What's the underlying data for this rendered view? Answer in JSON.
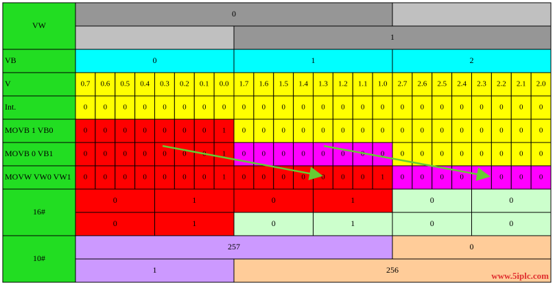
{
  "groups": [
    {
      "label": "VW",
      "rows": [
        [
          {
            "text": "0",
            "span": 16,
            "color": "#969696"
          },
          {
            "span": 8,
            "color": "#c0c0c0"
          }
        ],
        [
          {
            "span": 8,
            "color": "#c0c0c0"
          },
          {
            "text": "1",
            "span": 16,
            "color": "#969696"
          }
        ]
      ]
    },
    {
      "label": "VB",
      "rows": [
        [
          {
            "text": "0",
            "span": 8,
            "color": "#00ffff"
          },
          {
            "text": "1",
            "span": 8,
            "color": "#00ffff"
          },
          {
            "text": "2",
            "span": 8,
            "color": "#00ffff"
          }
        ]
      ]
    },
    {
      "label": "V",
      "rows": [
        [
          {
            "text": "0.7",
            "color": "#ffff00"
          },
          {
            "text": "0.6",
            "color": "#ffff00"
          },
          {
            "text": "0.5",
            "color": "#ffff00"
          },
          {
            "text": "0.4",
            "color": "#ffff00"
          },
          {
            "text": "0.3",
            "color": "#ffff00"
          },
          {
            "text": "0.2",
            "color": "#ffff00"
          },
          {
            "text": "0.1",
            "color": "#ffff00"
          },
          {
            "text": "0.0",
            "color": "#ffff00"
          },
          {
            "text": "1.7",
            "color": "#ffff00"
          },
          {
            "text": "1.6",
            "color": "#ffff00"
          },
          {
            "text": "1.5",
            "color": "#ffff00"
          },
          {
            "text": "1.4",
            "color": "#ffff00"
          },
          {
            "text": "1.3",
            "color": "#ffff00"
          },
          {
            "text": "1.2",
            "color": "#ffff00"
          },
          {
            "text": "1.1",
            "color": "#ffff00"
          },
          {
            "text": "1.0",
            "color": "#ffff00"
          },
          {
            "text": "2.7",
            "color": "#ffff00"
          },
          {
            "text": "2.6",
            "color": "#ffff00"
          },
          {
            "text": "2.5",
            "color": "#ffff00"
          },
          {
            "text": "2.4",
            "color": "#ffff00"
          },
          {
            "text": "2.3",
            "color": "#ffff00"
          },
          {
            "text": "2.2",
            "color": "#ffff00"
          },
          {
            "text": "2.1",
            "color": "#ffff00"
          },
          {
            "text": "2.0",
            "color": "#ffff00"
          }
        ]
      ]
    },
    {
      "label": "Int.",
      "rows": [
        [
          {
            "text": "0",
            "color": "#ffff00"
          },
          {
            "text": "0",
            "color": "#ffff00"
          },
          {
            "text": "0",
            "color": "#ffff00"
          },
          {
            "text": "0",
            "color": "#ffff00"
          },
          {
            "text": "0",
            "color": "#ffff00"
          },
          {
            "text": "0",
            "color": "#ffff00"
          },
          {
            "text": "0",
            "color": "#ffff00"
          },
          {
            "text": "0",
            "color": "#ffff00"
          },
          {
            "text": "0",
            "color": "#ffff00"
          },
          {
            "text": "0",
            "color": "#ffff00"
          },
          {
            "text": "0",
            "color": "#ffff00"
          },
          {
            "text": "0",
            "color": "#ffff00"
          },
          {
            "text": "0",
            "color": "#ffff00"
          },
          {
            "text": "0",
            "color": "#ffff00"
          },
          {
            "text": "0",
            "color": "#ffff00"
          },
          {
            "text": "0",
            "color": "#ffff00"
          },
          {
            "text": "0",
            "color": "#ffff00"
          },
          {
            "text": "0",
            "color": "#ffff00"
          },
          {
            "text": "0",
            "color": "#ffff00"
          },
          {
            "text": "0",
            "color": "#ffff00"
          },
          {
            "text": "0",
            "color": "#ffff00"
          },
          {
            "text": "0",
            "color": "#ffff00"
          },
          {
            "text": "0",
            "color": "#ffff00"
          },
          {
            "text": "0",
            "color": "#ffff00"
          }
        ]
      ]
    },
    {
      "label": "MOVB 1 VB0",
      "rows": [
        [
          {
            "text": "0",
            "color": "#ff0000"
          },
          {
            "text": "0",
            "color": "#ff0000"
          },
          {
            "text": "0",
            "color": "#ff0000"
          },
          {
            "text": "0",
            "color": "#ff0000"
          },
          {
            "text": "0",
            "color": "#ff0000"
          },
          {
            "text": "0",
            "color": "#ff0000"
          },
          {
            "text": "0",
            "color": "#ff0000"
          },
          {
            "text": "1",
            "color": "#ff0000"
          },
          {
            "text": "0",
            "color": "#ffff00"
          },
          {
            "text": "0",
            "color": "#ffff00"
          },
          {
            "text": "0",
            "color": "#ffff00"
          },
          {
            "text": "0",
            "color": "#ffff00"
          },
          {
            "text": "0",
            "color": "#ffff00"
          },
          {
            "text": "0",
            "color": "#ffff00"
          },
          {
            "text": "0",
            "color": "#ffff00"
          },
          {
            "text": "0",
            "color": "#ffff00"
          },
          {
            "text": "0",
            "color": "#ffff00"
          },
          {
            "text": "0",
            "color": "#ffff00"
          },
          {
            "text": "0",
            "color": "#ffff00"
          },
          {
            "text": "0",
            "color": "#ffff00"
          },
          {
            "text": "0",
            "color": "#ffff00"
          },
          {
            "text": "0",
            "color": "#ffff00"
          },
          {
            "text": "0",
            "color": "#ffff00"
          },
          {
            "text": "0",
            "color": "#ffff00"
          }
        ]
      ]
    },
    {
      "label": "MOVB 0 VB1",
      "rows": [
        [
          {
            "text": "0",
            "color": "#ff0000"
          },
          {
            "text": "0",
            "color": "#ff0000"
          },
          {
            "text": "0",
            "color": "#ff0000"
          },
          {
            "text": "0",
            "color": "#ff0000"
          },
          {
            "text": "0",
            "color": "#ff0000"
          },
          {
            "text": "0",
            "color": "#ff0000"
          },
          {
            "text": "0",
            "color": "#ff0000"
          },
          {
            "text": "1",
            "color": "#ff0000"
          },
          {
            "text": "0",
            "color": "#ff00ff"
          },
          {
            "text": "0",
            "color": "#ff00ff"
          },
          {
            "text": "0",
            "color": "#ff00ff"
          },
          {
            "text": "0",
            "color": "#ff00ff"
          },
          {
            "text": "0",
            "color": "#ff00ff"
          },
          {
            "text": "0",
            "color": "#ff00ff"
          },
          {
            "text": "0",
            "color": "#ff00ff"
          },
          {
            "text": "0",
            "color": "#ff00ff"
          },
          {
            "text": "0",
            "color": "#ffff00"
          },
          {
            "text": "0",
            "color": "#ffff00"
          },
          {
            "text": "0",
            "color": "#ffff00"
          },
          {
            "text": "0",
            "color": "#ffff00"
          },
          {
            "text": "0",
            "color": "#ffff00"
          },
          {
            "text": "0",
            "color": "#ffff00"
          },
          {
            "text": "0",
            "color": "#ffff00"
          },
          {
            "text": "0",
            "color": "#ffff00"
          }
        ]
      ]
    },
    {
      "label": "MOVW VW0 VW1",
      "rows": [
        [
          {
            "text": "0",
            "color": "#ff0000"
          },
          {
            "text": "0",
            "color": "#ff0000"
          },
          {
            "text": "0",
            "color": "#ff0000"
          },
          {
            "text": "0",
            "color": "#ff0000"
          },
          {
            "text": "0",
            "color": "#ff0000"
          },
          {
            "text": "0",
            "color": "#ff0000"
          },
          {
            "text": "0",
            "color": "#ff0000"
          },
          {
            "text": "1",
            "color": "#ff0000"
          },
          {
            "text": "0",
            "color": "#ff0000"
          },
          {
            "text": "0",
            "color": "#ff0000"
          },
          {
            "text": "0",
            "color": "#ff0000"
          },
          {
            "text": "0",
            "color": "#ff0000"
          },
          {
            "text": "0",
            "color": "#ff0000"
          },
          {
            "text": "0",
            "color": "#ff0000"
          },
          {
            "text": "0",
            "color": "#ff0000"
          },
          {
            "text": "1",
            "color": "#ff0000"
          },
          {
            "text": "0",
            "color": "#ff00ff"
          },
          {
            "text": "0",
            "color": "#ff00ff"
          },
          {
            "text": "0",
            "color": "#ff00ff"
          },
          {
            "text": "0",
            "color": "#ff00ff"
          },
          {
            "text": "0",
            "color": "#ff00ff"
          },
          {
            "text": "0",
            "color": "#ff00ff"
          },
          {
            "text": "0",
            "color": "#ff00ff"
          },
          {
            "text": "0",
            "color": "#ff00ff"
          }
        ]
      ]
    },
    {
      "label": "16#",
      "rows": [
        [
          {
            "text": "0",
            "span": 4,
            "color": "#ff0000"
          },
          {
            "text": "1",
            "span": 4,
            "color": "#ff0000"
          },
          {
            "text": "0",
            "span": 4,
            "color": "#ff0000"
          },
          {
            "text": "1",
            "span": 4,
            "color": "#ff0000"
          },
          {
            "text": "0",
            "span": 4,
            "color": "#ccffcc"
          },
          {
            "text": "0",
            "span": 4,
            "color": "#ccffcc"
          }
        ],
        [
          {
            "text": "0",
            "span": 4,
            "color": "#ff0000"
          },
          {
            "text": "1",
            "span": 4,
            "color": "#ff0000"
          },
          {
            "text": "0",
            "span": 4,
            "color": "#ccffcc"
          },
          {
            "text": "1",
            "span": 4,
            "color": "#ccffcc"
          },
          {
            "text": "0",
            "span": 4,
            "color": "#ccffcc"
          },
          {
            "text": "0",
            "span": 4,
            "color": "#ccffcc"
          }
        ]
      ]
    },
    {
      "label": "10#",
      "rows": [
        [
          {
            "text": "257",
            "span": 16,
            "color": "#cc99ff"
          },
          {
            "text": "0",
            "span": 8,
            "color": "#ffcc99"
          }
        ],
        [
          {
            "text": "1",
            "span": 8,
            "color": "#cc99ff"
          },
          {
            "text": "256",
            "span": 16,
            "color": "#ffcc99"
          }
        ]
      ]
    }
  ],
  "label_color": "#22dd22",
  "watermark": "www.5iplc.com"
}
